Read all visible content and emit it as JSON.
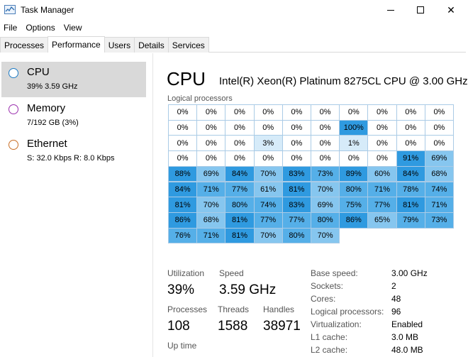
{
  "window": {
    "title": "Task Manager"
  },
  "menu": [
    "File",
    "Options",
    "View"
  ],
  "tabs": [
    "Processes",
    "Performance",
    "Users",
    "Details",
    "Services"
  ],
  "active_tab": 1,
  "sidebar": [
    {
      "name": "CPU",
      "sub": "39%  3.59 GHz",
      "color": "#1e7bc4",
      "selected": true
    },
    {
      "name": "Memory",
      "sub": "7/192 GB (3%)",
      "color": "#9b2fae",
      "selected": false
    },
    {
      "name": "Ethernet",
      "sub": "S: 32.0 Kbps  R: 8.0 Kbps",
      "color": "#c96f26",
      "selected": false
    }
  ],
  "header": {
    "title": "CPU",
    "model": "Intel(R) Xeon(R) Platinum 8275CL CPU @ 3.00 GHz"
  },
  "logical_label": "Logical processors",
  "grid_values": [
    [
      0,
      0,
      0,
      0,
      0,
      0,
      0,
      0,
      0,
      0
    ],
    [
      0,
      0,
      0,
      0,
      0,
      0,
      100,
      0,
      0,
      0
    ],
    [
      0,
      0,
      0,
      3,
      0,
      0,
      1,
      0,
      0,
      0
    ],
    [
      0,
      0,
      0,
      0,
      0,
      0,
      0,
      0,
      91,
      69
    ],
    [
      88,
      69,
      84,
      70,
      83,
      73,
      89,
      60,
      84,
      68
    ],
    [
      84,
      71,
      77,
      61,
      81,
      70,
      80,
      71,
      78,
      74
    ],
    [
      81,
      70,
      80,
      74,
      83,
      69,
      75,
      77,
      81,
      71
    ],
    [
      86,
      68,
      81,
      77,
      77,
      80,
      86,
      65,
      79,
      73
    ],
    [
      76,
      71,
      81,
      70,
      80,
      70
    ]
  ],
  "stats": {
    "utilization_label": "Utilization",
    "utilization": "39%",
    "speed_label": "Speed",
    "speed": "3.59 GHz",
    "processes_label": "Processes",
    "processes": "108",
    "threads_label": "Threads",
    "threads": "1588",
    "handles_label": "Handles",
    "handles": "38971",
    "uptime_label": "Up time"
  },
  "specs": [
    {
      "label": "Base speed:",
      "value": "3.00 GHz"
    },
    {
      "label": "Sockets:",
      "value": "2"
    },
    {
      "label": "Cores:",
      "value": "48"
    },
    {
      "label": "Logical processors:",
      "value": "96"
    },
    {
      "label": "Virtualization:",
      "value": "Enabled"
    },
    {
      "label": "L1 cache:",
      "value": "3.0 MB"
    },
    {
      "label": "L2 cache:",
      "value": "48.0 MB"
    }
  ]
}
